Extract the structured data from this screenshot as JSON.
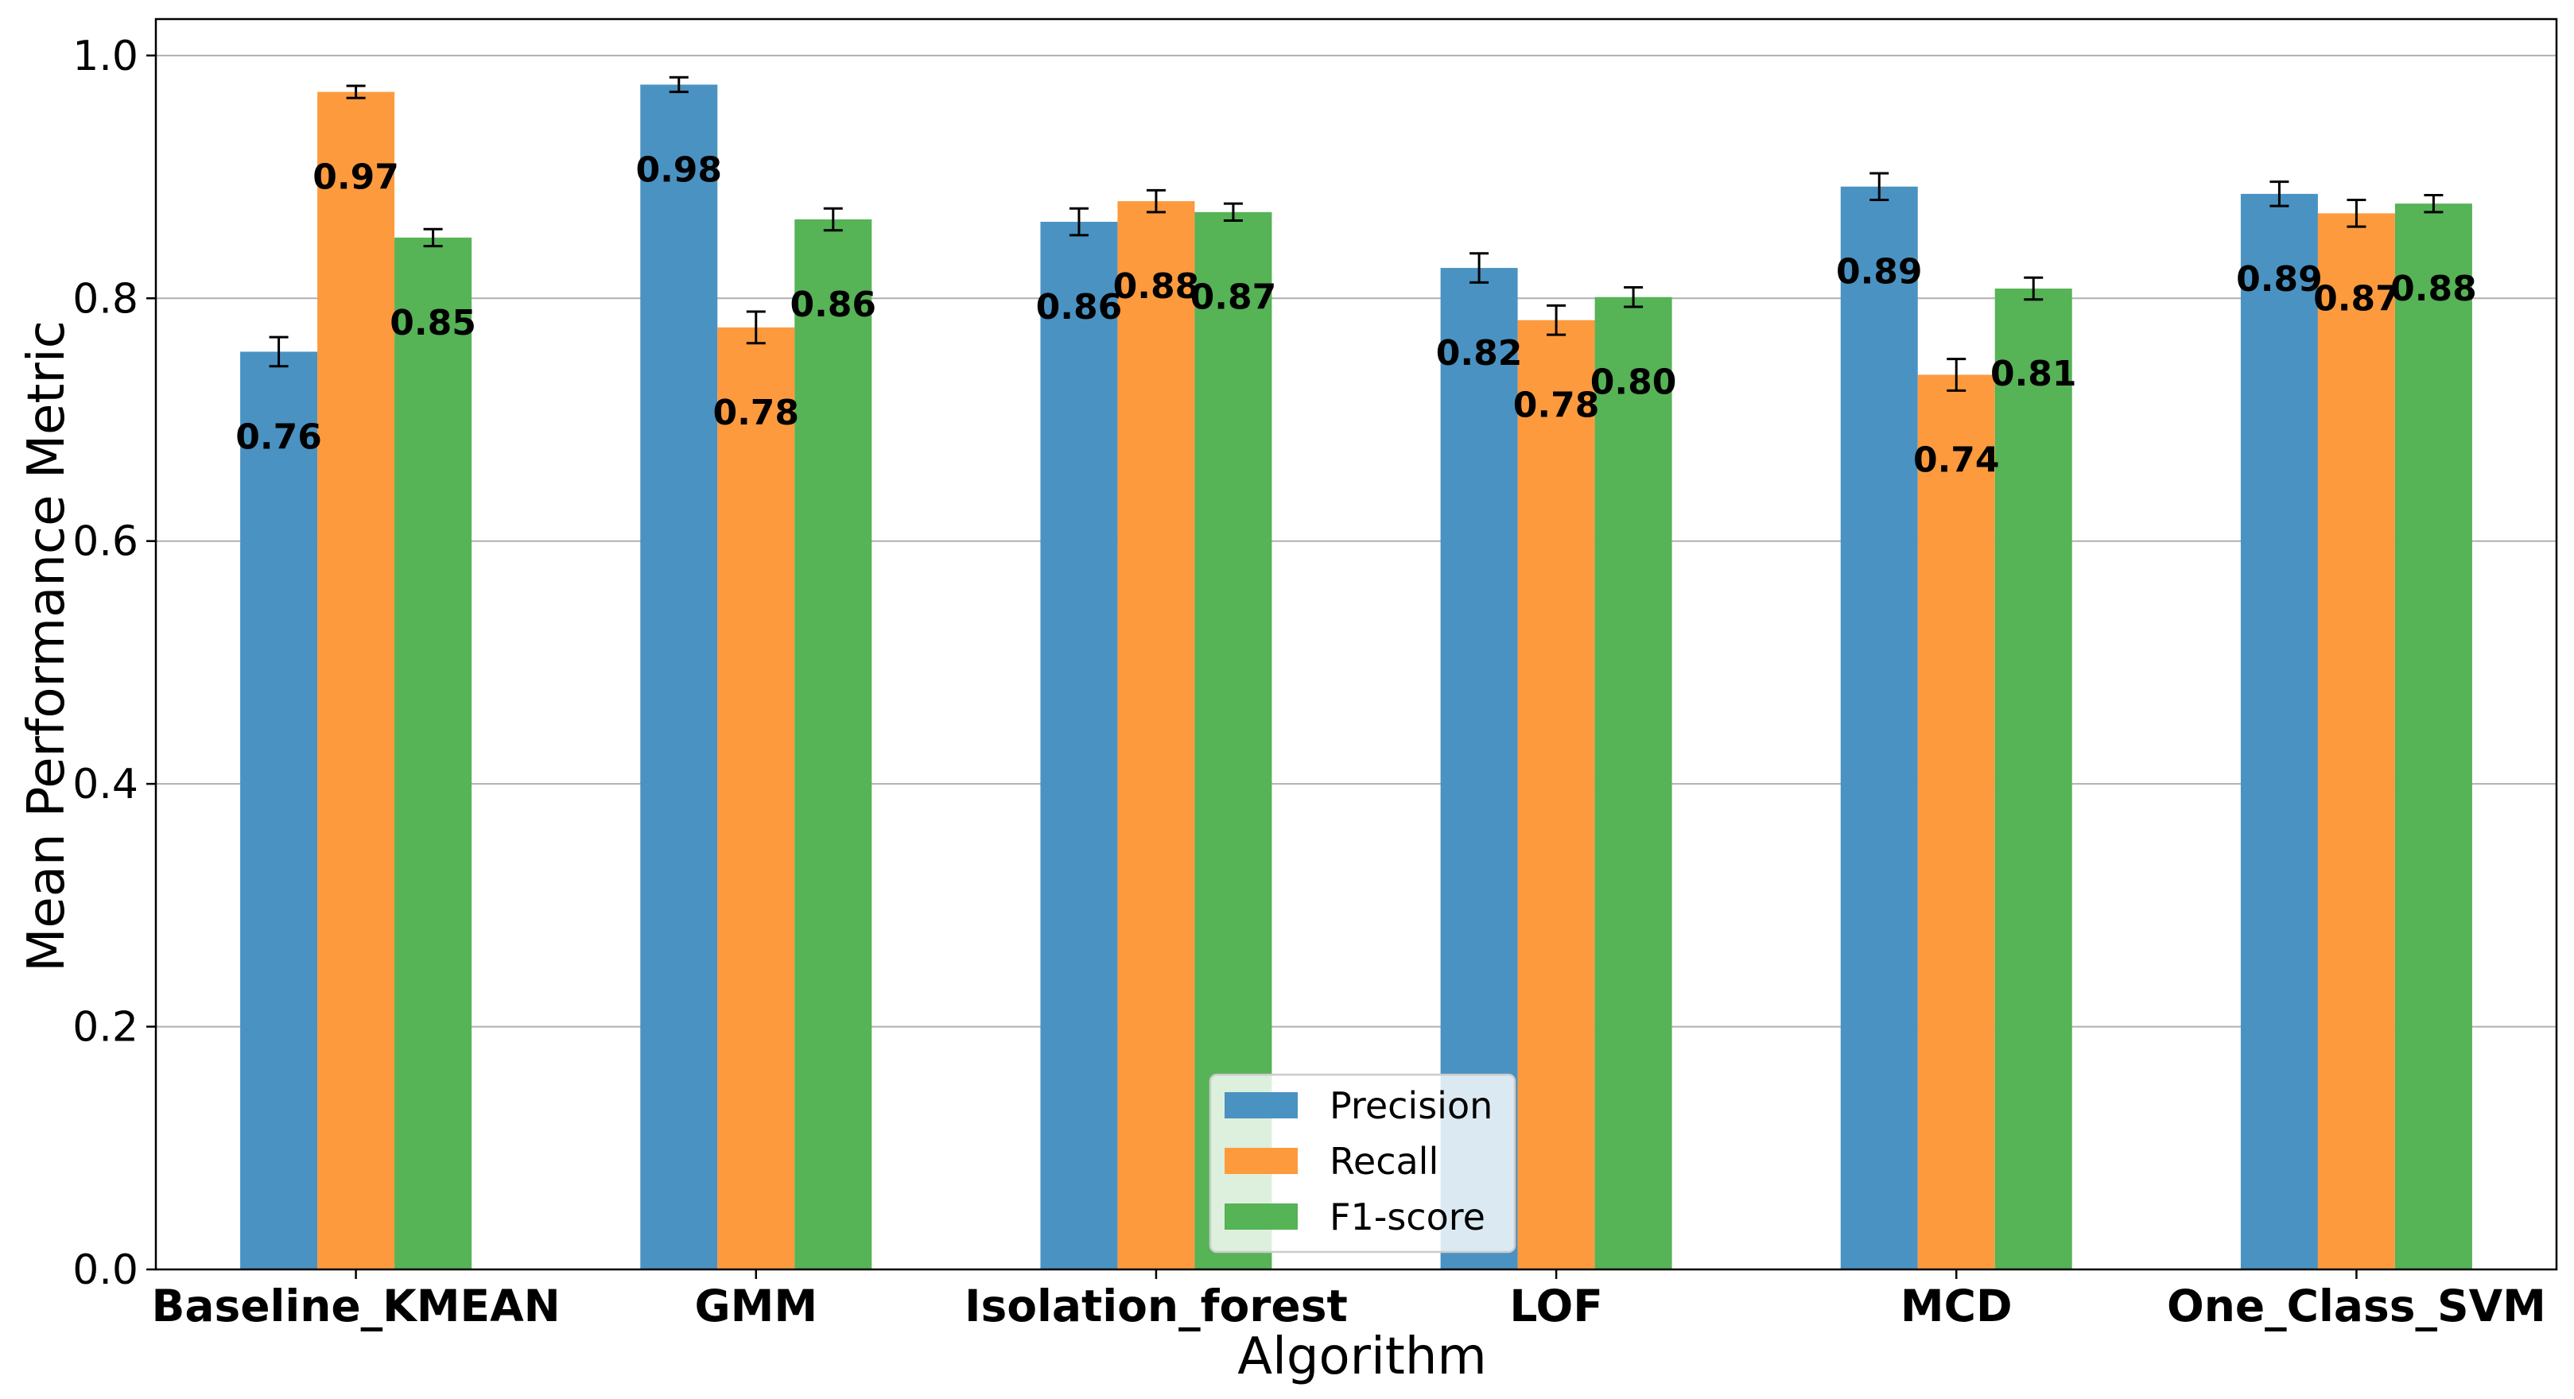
{
  "chart_data": {
    "type": "bar",
    "xlabel": "Algorithm",
    "ylabel": "Mean Performance Metric",
    "ylim": [
      0,
      1.03
    ],
    "yticks": [
      0.0,
      0.2,
      0.4,
      0.6,
      0.8,
      1.0
    ],
    "ytick_labels": [
      "0.0",
      "0.2",
      "0.4",
      "0.6",
      "0.8",
      "1.0"
    ],
    "grid": "horizontal",
    "legend_position": "bottom-center",
    "categories": [
      "Baseline_KMEAN",
      "GMM",
      "Isolation_forest",
      "LOF",
      "MCD",
      "One_Class_SVM"
    ],
    "series": [
      {
        "name": "Precision",
        "color": "#4a92c2",
        "values": [
          0.756,
          0.976,
          0.863,
          0.825,
          0.892,
          0.886
        ],
        "errors": [
          0.012,
          0.006,
          0.011,
          0.012,
          0.011,
          0.01
        ],
        "labels": [
          "0.76",
          "0.98",
          "0.86",
          "0.82",
          "0.89",
          "0.89"
        ]
      },
      {
        "name": "Recall",
        "color": "#fd9a3e",
        "values": [
          0.97,
          0.776,
          0.88,
          0.782,
          0.737,
          0.87
        ],
        "errors": [
          0.005,
          0.013,
          0.009,
          0.012,
          0.013,
          0.011
        ],
        "labels": [
          "0.97",
          "0.78",
          "0.88",
          "0.78",
          "0.74",
          "0.87"
        ]
      },
      {
        "name": "F1-score",
        "color": "#56b356",
        "values": [
          0.85,
          0.865,
          0.871,
          0.801,
          0.808,
          0.878
        ],
        "errors": [
          0.007,
          0.009,
          0.007,
          0.008,
          0.009,
          0.007
        ],
        "labels": [
          "0.85",
          "0.86",
          "0.87",
          "0.80",
          "0.81",
          "0.88"
        ]
      }
    ]
  }
}
